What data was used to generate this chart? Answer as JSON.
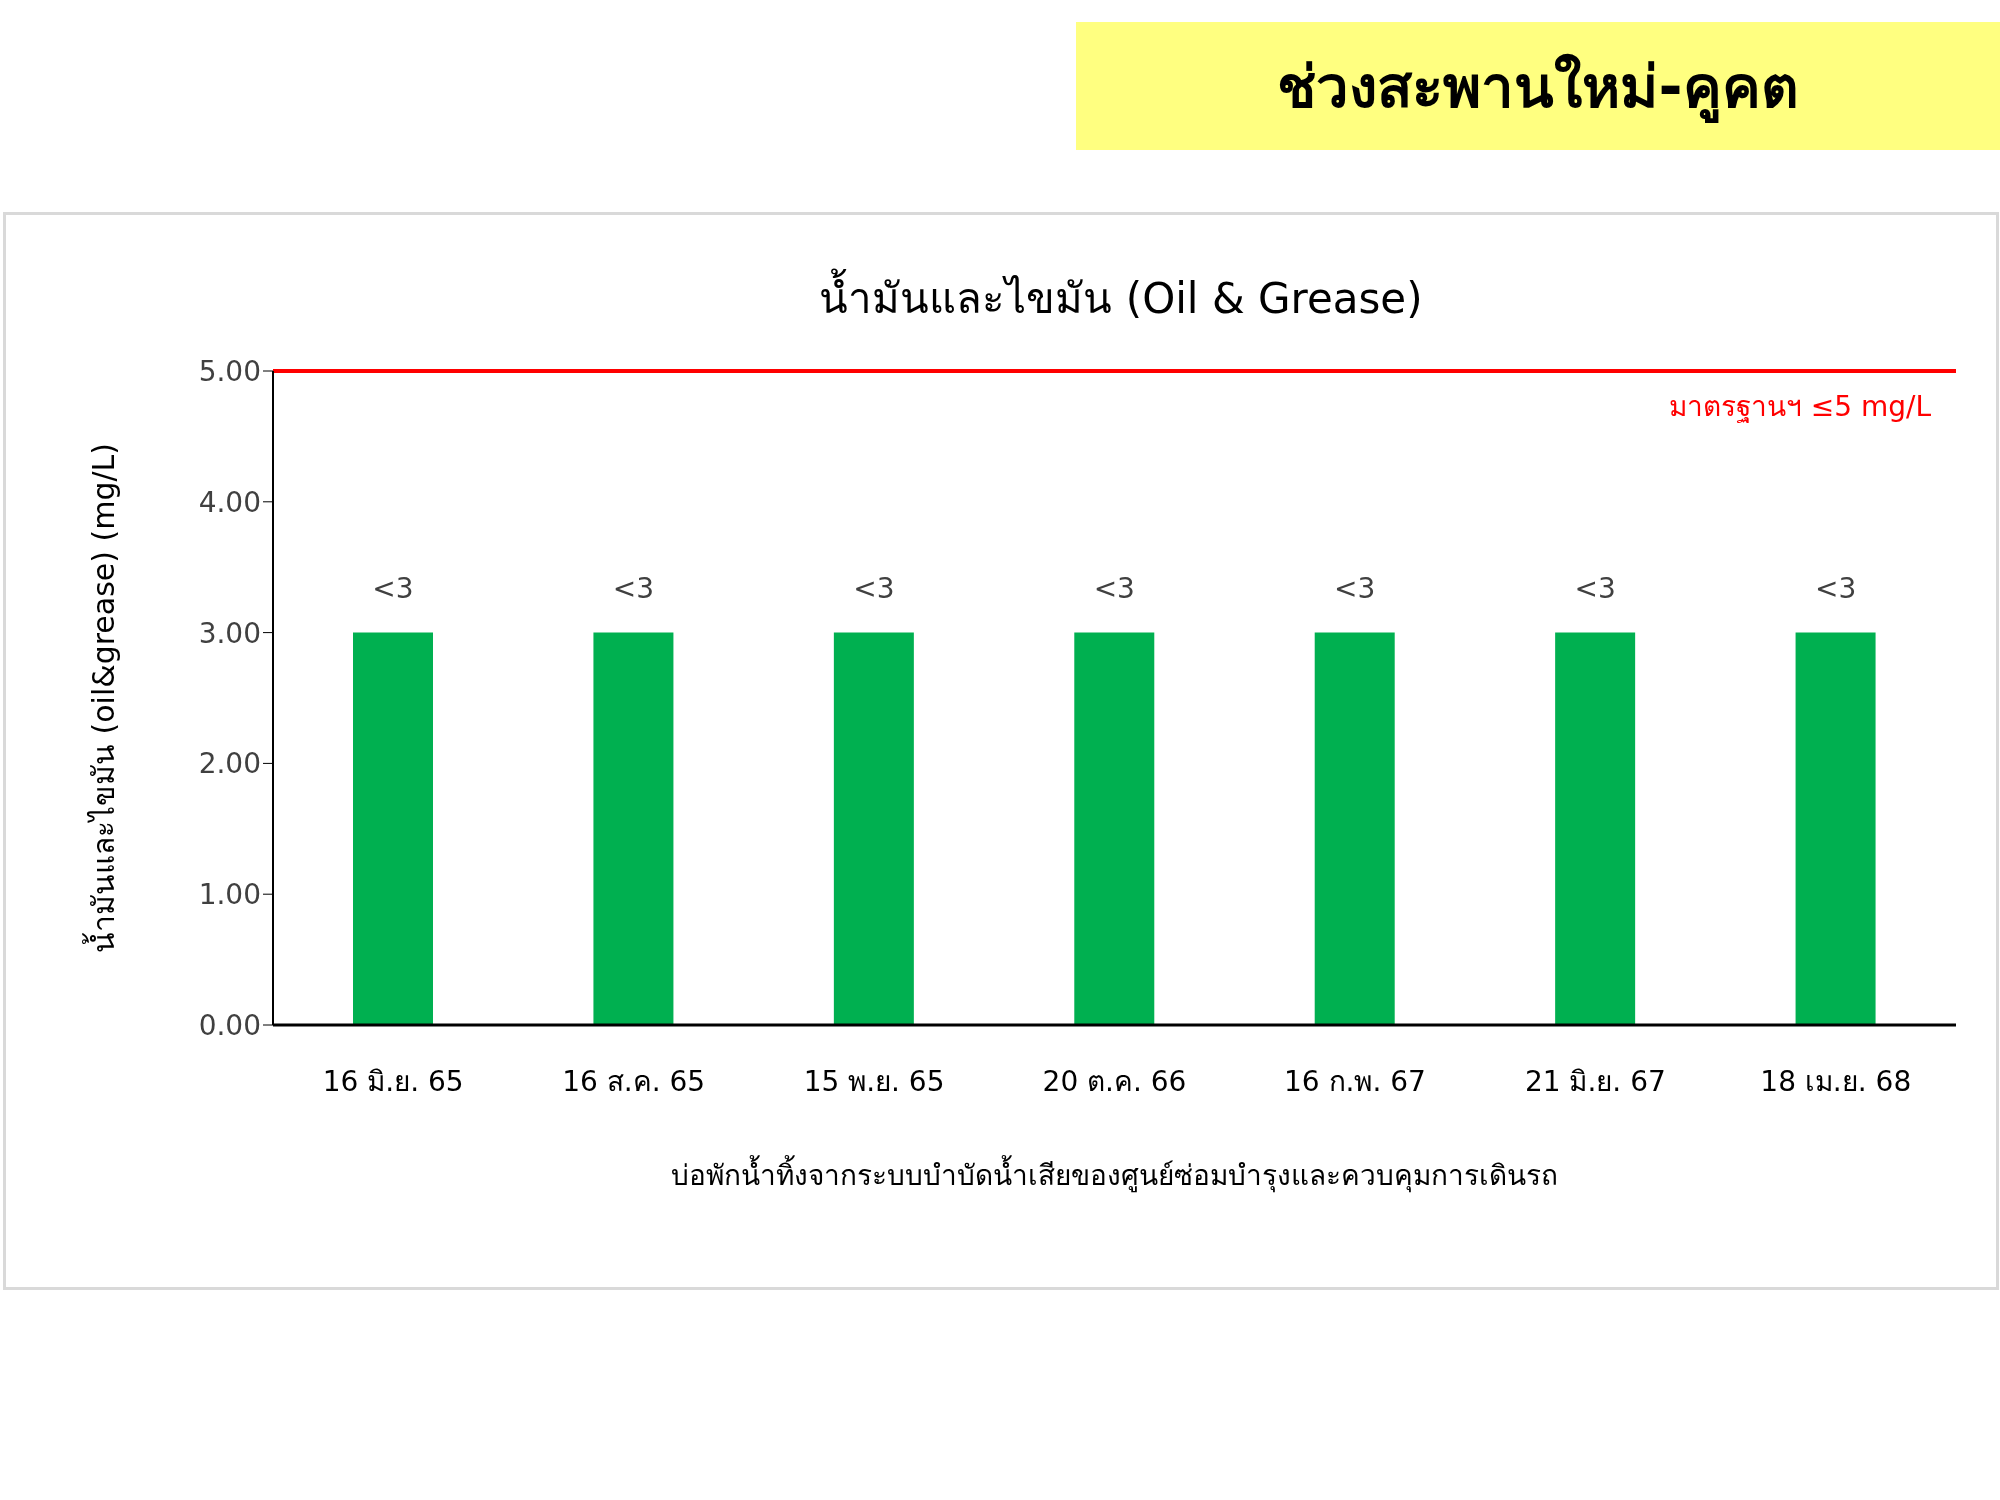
{
  "chart_data": {
    "type": "bar",
    "title": "ช่วงสะพานใหม่-คูคต",
    "subtitle": "น้ำมันและไขมัน (Oil & Grease)",
    "xlabel": "บ่อพักน้ำทิ้งจากระบบบำบัดน้ำเสียของศูนย์ซ่อมบำรุงและควบคุมการเดินรถ",
    "ylabel": "น้ำมันและไขมัน (oil&grease) (mg/L)",
    "categories": [
      "16 มิ.ย. 65",
      "16 ส.ค. 65",
      "15 พ.ย. 65",
      "20 ต.ค. 66",
      "16 ก.พ. 67",
      "21 มิ.ย. 67",
      "18 เม.ย. 68"
    ],
    "values": [
      3,
      3,
      3,
      3,
      3,
      3,
      3
    ],
    "value_labels": [
      "<3",
      "<3",
      "<3",
      "<3",
      "<3",
      "<3",
      "<3"
    ],
    "color": "#00b050",
    "ylim": [
      0,
      5
    ],
    "yticks": [
      {
        "value": 0,
        "label": "0.00"
      },
      {
        "value": 1,
        "label": "1.00"
      },
      {
        "value": 2,
        "label": "2.00"
      },
      {
        "value": 3,
        "label": "3.00"
      },
      {
        "value": 4,
        "label": "4.00"
      },
      {
        "value": 5,
        "label": "5.00"
      }
    ],
    "ref_lines": [
      {
        "axis": "y",
        "value": 5,
        "label": "มาตรฐานฯ ≤5 mg/L",
        "color": "#ff0000"
      }
    ]
  }
}
